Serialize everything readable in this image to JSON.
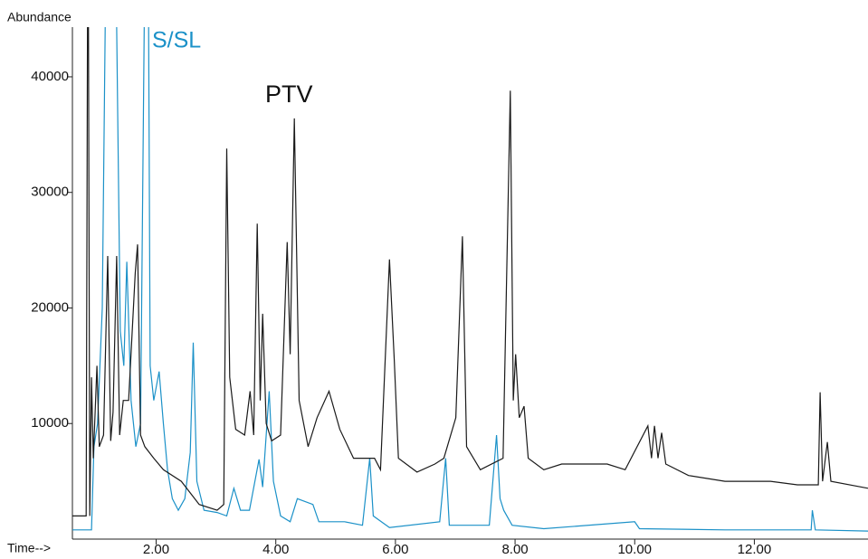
{
  "chart_data": {
    "type": "line",
    "y_label": "Abundance",
    "x_label": "Time-->",
    "xlim": [
      0.6,
      13.9
    ],
    "ylim": [
      0,
      44300
    ],
    "xticks": [
      {
        "value": 2,
        "label": "2.00"
      },
      {
        "value": 4,
        "label": "4.00"
      },
      {
        "value": 6,
        "label": "6.00"
      },
      {
        "value": 8,
        "label": "8.00"
      },
      {
        "value": 10,
        "label": "10.00"
      },
      {
        "value": 12,
        "label": "12.00"
      }
    ],
    "yticks": [
      10000,
      20000,
      30000,
      40000
    ],
    "series": [
      {
        "name": "PTV",
        "color": "#1a1a1a",
        "x": [
          0.6,
          0.83,
          0.86,
          0.89,
          0.92,
          0.95,
          1.01,
          1.05,
          1.12,
          1.19,
          1.24,
          1.28,
          1.34,
          1.39,
          1.45,
          1.54,
          1.65,
          1.69,
          1.74,
          1.81,
          1.96,
          2.12,
          2.42,
          2.72,
          3.02,
          3.13,
          3.18,
          3.23,
          3.33,
          3.48,
          3.57,
          3.63,
          3.69,
          3.74,
          3.78,
          3.84,
          3.93,
          4.08,
          4.19,
          4.24,
          4.31,
          4.39,
          4.54,
          4.69,
          4.89,
          5.07,
          5.3,
          5.65,
          5.75,
          5.9,
          5.98,
          6.05,
          6.36,
          6.66,
          6.81,
          7.01,
          7.12,
          7.19,
          7.42,
          7.8,
          7.92,
          7.97,
          8.01,
          8.07,
          8.15,
          8.22,
          8.48,
          8.78,
          9.24,
          9.54,
          9.84,
          10.22,
          10.28,
          10.33,
          10.39,
          10.45,
          10.52,
          10.9,
          11.51,
          12.27,
          12.72,
          13.07,
          13.1,
          13.14,
          13.22,
          13.28,
          13.9
        ],
        "values": [
          2000,
          2000,
          60000,
          2000,
          14000,
          7000,
          15000,
          8000,
          9000,
          24500,
          8500,
          11000,
          24500,
          9000,
          12000,
          12000,
          23000,
          25500,
          9000,
          8000,
          7000,
          6000,
          5000,
          3000,
          2500,
          3000,
          33800,
          14000,
          9500,
          9000,
          12800,
          9000,
          27300,
          12000,
          19500,
          10000,
          8500,
          9000,
          25700,
          16000,
          36400,
          12000,
          8000,
          10500,
          12800,
          9500,
          7000,
          7000,
          6000,
          24200,
          15500,
          7000,
          5800,
          6500,
          7000,
          10500,
          26200,
          8000,
          6000,
          7000,
          38800,
          12000,
          16000,
          10500,
          11500,
          7000,
          6000,
          6500,
          6500,
          6500,
          6000,
          9800,
          7000,
          9800,
          7000,
          9200,
          6500,
          5500,
          5000,
          5000,
          4700,
          4700,
          12700,
          5000,
          8400,
          5000,
          4400
        ]
      },
      {
        "name": "S/SL",
        "color": "#1b91c8",
        "x": [
          0.6,
          0.92,
          0.96,
          1.02,
          1.1,
          1.18,
          1.27,
          1.34,
          1.4,
          1.46,
          1.51,
          1.58,
          1.66,
          1.74,
          1.81,
          1.86,
          1.9,
          1.96,
          2.05,
          2.12,
          2.19,
          2.27,
          2.37,
          2.48,
          2.57,
          2.62,
          2.68,
          2.8,
          3.02,
          3.18,
          3.3,
          3.41,
          3.56,
          3.72,
          3.78,
          3.89,
          3.96,
          4.08,
          4.24,
          4.36,
          4.62,
          4.72,
          5.15,
          5.45,
          5.57,
          5.63,
          5.9,
          6.74,
          6.84,
          6.9,
          7.57,
          7.69,
          7.75,
          7.81,
          7.95,
          8.48,
          10.0,
          10.08,
          11.51,
          12.95,
          12.97,
          13.02,
          13.9
        ],
        "values": [
          800,
          800,
          8000,
          10000,
          20000,
          60000,
          60000,
          44300,
          18000,
          15000,
          24000,
          12000,
          8000,
          10000,
          50000,
          60000,
          15000,
          12000,
          14500,
          10000,
          6000,
          3500,
          2500,
          3500,
          7500,
          17000,
          5000,
          2500,
          2300,
          2000,
          4400,
          2500,
          2500,
          6900,
          4500,
          12800,
          5000,
          2000,
          1500,
          3500,
          3000,
          1500,
          1500,
          1200,
          7000,
          2000,
          1000,
          1500,
          7000,
          1200,
          1200,
          9000,
          3500,
          2500,
          1200,
          900,
          1500,
          900,
          800,
          800,
          2500,
          800,
          700
        ]
      }
    ]
  }
}
